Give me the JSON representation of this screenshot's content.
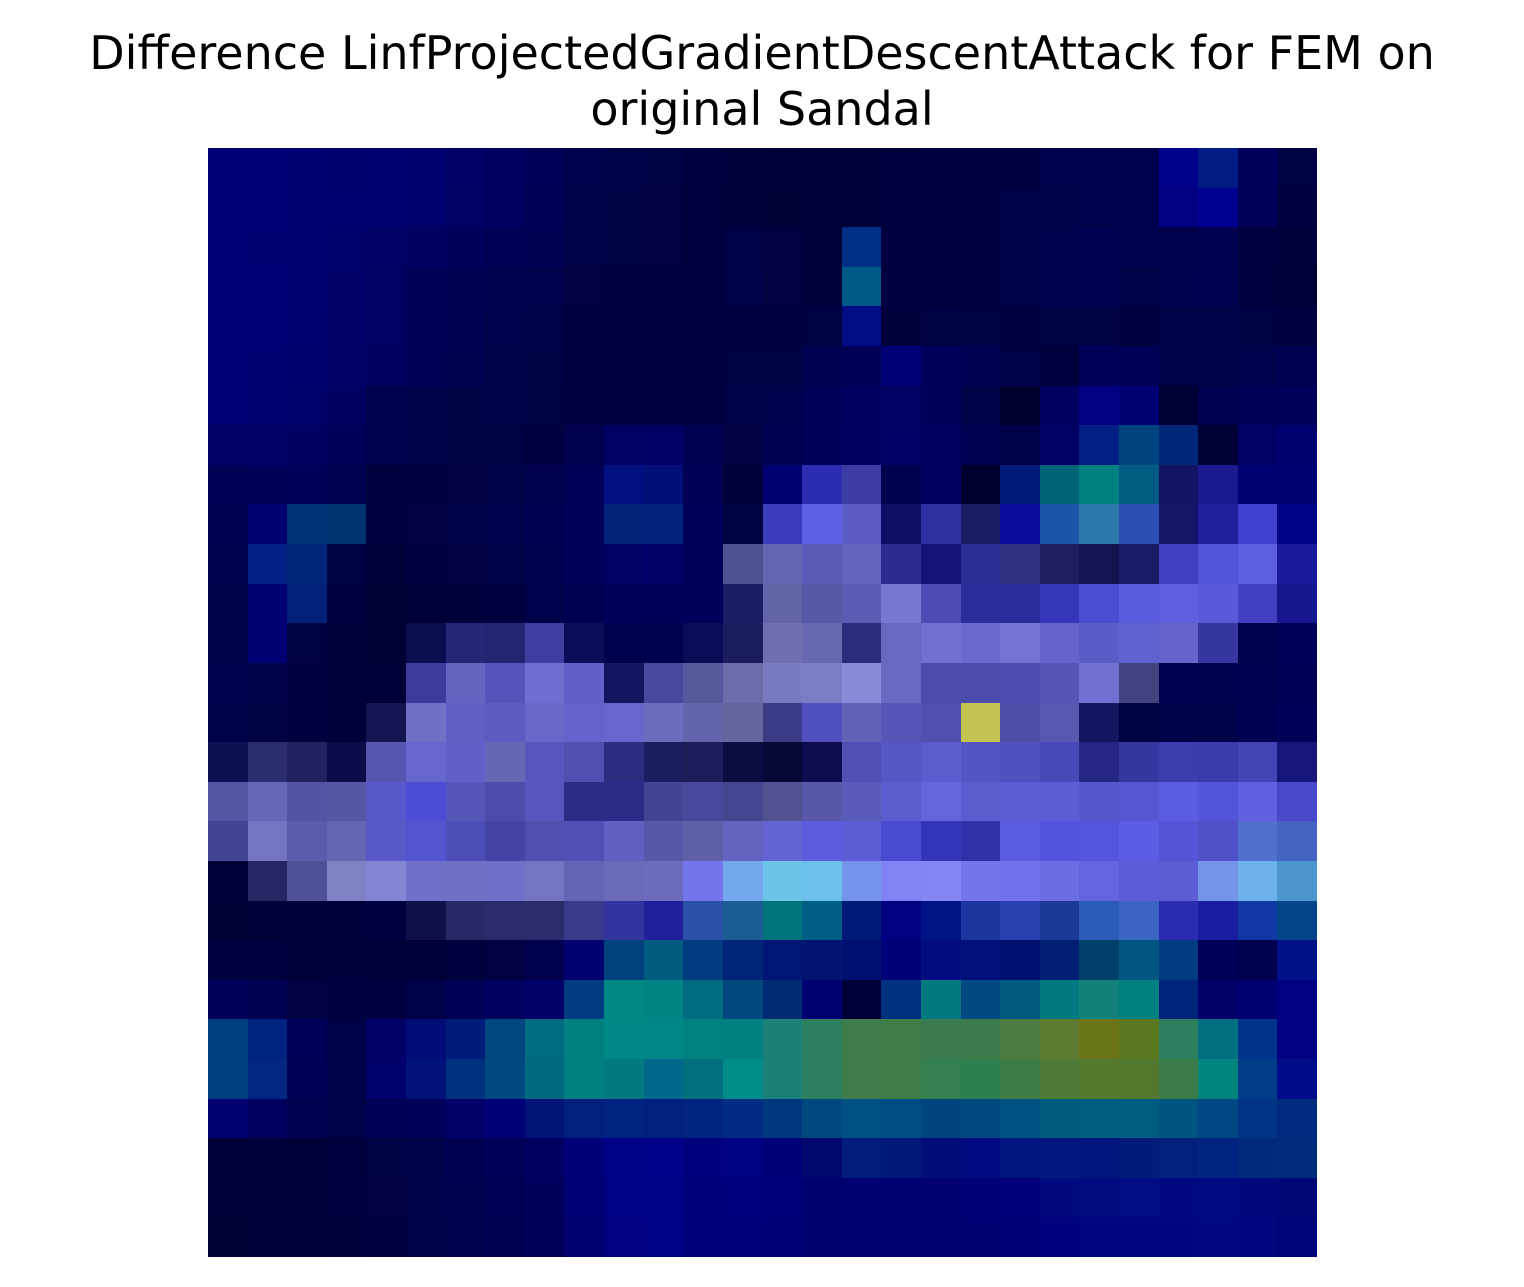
{
  "chart_data": {
    "type": "heatmap",
    "title_lines": [
      "Difference LinfProjectedGradientDescentAttack for FEM on",
      "original Sandal"
    ],
    "rows": 28,
    "cols": 28,
    "axes_visible": false,
    "colormap": "gist_stern",
    "cells": [
      [
        "#000076",
        "#000076",
        "#000074",
        "#00006e",
        "#000070",
        "#00006e",
        "#000066",
        "#000060",
        "#000058",
        "#00004a",
        "#000046",
        "#000044",
        "#00003e",
        "#00003a",
        "#000038",
        "#00003a",
        "#00003a",
        "#00003c",
        "#000040",
        "#00003e",
        "#000040",
        "#00004a",
        "#00004a",
        "#00004e",
        "#00008a",
        "#001a86",
        "#00005c",
        "#000044"
      ],
      [
        "#000078",
        "#000076",
        "#000074",
        "#000070",
        "#000070",
        "#00006e",
        "#000064",
        "#00005e",
        "#000056",
        "#000048",
        "#000044",
        "#000042",
        "#00003c",
        "#000038",
        "#000036",
        "#000038",
        "#000038",
        "#00003c",
        "#00003e",
        "#000040",
        "#000046",
        "#000048",
        "#00004a",
        "#00004e",
        "#000080",
        "#000090",
        "#000058",
        "#000040"
      ],
      [
        "#000076",
        "#000074",
        "#000070",
        "#00006c",
        "#000066",
        "#000060",
        "#00005c",
        "#000056",
        "#000052",
        "#000046",
        "#000044",
        "#000042",
        "#00003c",
        "#000046",
        "#000042",
        "#00003a",
        "#003086",
        "#000040",
        "#000040",
        "#00003e",
        "#000048",
        "#00004a",
        "#000050",
        "#00004e",
        "#00004a",
        "#000050",
        "#00003e",
        "#00003a"
      ],
      [
        "#000078",
        "#000076",
        "#000072",
        "#00006a",
        "#000062",
        "#000056",
        "#000052",
        "#00004e",
        "#00004a",
        "#000042",
        "#000040",
        "#000040",
        "#00003e",
        "#000048",
        "#000042",
        "#00003a",
        "#005a88",
        "#000040",
        "#00003c",
        "#000040",
        "#000048",
        "#00004c",
        "#000050",
        "#000046",
        "#00004e",
        "#000050",
        "#00003c",
        "#000038"
      ],
      [
        "#000076",
        "#000076",
        "#000070",
        "#00006a",
        "#000062",
        "#000056",
        "#000050",
        "#00004a",
        "#000048",
        "#00003e",
        "#00003c",
        "#00003e",
        "#000040",
        "#000040",
        "#000040",
        "#000044",
        "#000c84",
        "#00003a",
        "#000044",
        "#000044",
        "#000040",
        "#000044",
        "#000044",
        "#00003e",
        "#000046",
        "#000046",
        "#000044",
        "#000040"
      ],
      [
        "#000076",
        "#000074",
        "#00006e",
        "#000066",
        "#000060",
        "#000054",
        "#00004e",
        "#000048",
        "#000044",
        "#00003c",
        "#00003e",
        "#00003e",
        "#000040",
        "#000044",
        "#000044",
        "#000050",
        "#000054",
        "#000076",
        "#00005c",
        "#000052",
        "#000046",
        "#00003c",
        "#000058",
        "#000056",
        "#000048",
        "#000048",
        "#00004a",
        "#000052"
      ],
      [
        "#000076",
        "#000070",
        "#00006c",
        "#000060",
        "#00004e",
        "#000048",
        "#000044",
        "#000046",
        "#000044",
        "#000040",
        "#000040",
        "#00003e",
        "#00003e",
        "#000046",
        "#00004a",
        "#000058",
        "#000060",
        "#000062",
        "#00005a",
        "#000046",
        "#00002e",
        "#000060",
        "#000080",
        "#000074",
        "#000036",
        "#000050",
        "#000056",
        "#00005a"
      ],
      [
        "#000068",
        "#000066",
        "#000060",
        "#000058",
        "#00004c",
        "#000046",
        "#000044",
        "#000044",
        "#00003e",
        "#00004c",
        "#000064",
        "#000066",
        "#000052",
        "#000042",
        "#000050",
        "#000058",
        "#00005e",
        "#000066",
        "#000060",
        "#000052",
        "#000048",
        "#000064",
        "#001e84",
        "#004480",
        "#002678",
        "#000036",
        "#000064",
        "#00006e"
      ],
      [
        "#000054",
        "#000056",
        "#000058",
        "#000052",
        "#00003c",
        "#00003e",
        "#000042",
        "#000046",
        "#00004c",
        "#000058",
        "#001080",
        "#001078",
        "#000054",
        "#00003a",
        "#000072",
        "#2c2cb0",
        "#3c3ca4",
        "#00004e",
        "#000060",
        "#000030",
        "#001a7a",
        "#006478",
        "#008080",
        "#005c80",
        "#141464",
        "#1a1a90",
        "#000074",
        "#000074"
      ],
      [
        "#000050",
        "#000070",
        "#003278",
        "#003470",
        "#000040",
        "#000042",
        "#000046",
        "#00004a",
        "#000050",
        "#00005a",
        "#002276",
        "#00227a",
        "#00005a",
        "#000044",
        "#3c3cbc",
        "#6060e6",
        "#5c5cc4",
        "#0e0e64",
        "#3030a4",
        "#1c1c64",
        "#0c0c9c",
        "#1c54a8",
        "#2c78a8",
        "#2c4eb4",
        "#161668",
        "#20209c",
        "#4040d0",
        "#000084"
      ],
      [
        "#00004e",
        "#001e84",
        "#002478",
        "#000044",
        "#000038",
        "#000040",
        "#000042",
        "#000046",
        "#00004e",
        "#000058",
        "#000062",
        "#00006a",
        "#00005a",
        "#505094",
        "#6464b0",
        "#5c5cb8",
        "#6464c0",
        "#2c2c90",
        "#141476",
        "#2c2c96",
        "#323284",
        "#1e1e60",
        "#141450",
        "#1a1a66",
        "#4040c0",
        "#5454d8",
        "#5e5ee0",
        "#1a1a98"
      ],
      [
        "#000048",
        "#000074",
        "#00207a",
        "#000040",
        "#000034",
        "#000038",
        "#00003a",
        "#00003e",
        "#00004a",
        "#000052",
        "#00005a",
        "#000058",
        "#00005c",
        "#1c1c64",
        "#6464a8",
        "#5858a4",
        "#5c5cb4",
        "#7878d0",
        "#4c4cb4",
        "#2c2c9c",
        "#2c2c9c",
        "#3636b8",
        "#4c4cd0",
        "#5a5add",
        "#5e5ede",
        "#5a5ad8",
        "#4040c0",
        "#16168e"
      ],
      [
        "#000048",
        "#000074",
        "#000044",
        "#000038",
        "#000036",
        "#0c0c50",
        "#262676",
        "#242472",
        "#3e3ea0",
        "#0c0c58",
        "#00004c",
        "#00004e",
        "#0c0c56",
        "#1c1c60",
        "#7070b0",
        "#6868b0",
        "#2c2c7c",
        "#6868c0",
        "#7070d0",
        "#6a6acc",
        "#7474d4",
        "#6464cc",
        "#5c5cc8",
        "#6060d0",
        "#6464cc",
        "#3636a0",
        "#00004c",
        "#00005a"
      ],
      [
        "#00004c",
        "#000048",
        "#000040",
        "#00003a",
        "#000038",
        "#3c3c9c",
        "#6464c0",
        "#5454ba",
        "#6e6ed0",
        "#6060c8",
        "#161660",
        "#48489c",
        "#58589c",
        "#6c6caa",
        "#7a7ac0",
        "#7c7cc4",
        "#8a8ad8",
        "#6868c0",
        "#4c4cac",
        "#4c4cac",
        "#4c4cb0",
        "#5656b6",
        "#7070d0",
        "#42427e",
        "#000050",
        "#00004e",
        "#000050",
        "#000056"
      ],
      [
        "#000048",
        "#000044",
        "#00003c",
        "#00003a",
        "#141450",
        "#7070c4",
        "#6060c4",
        "#5c5cc0",
        "#6868c8",
        "#6464cc",
        "#6666cc",
        "#6c6cbc",
        "#6464ac",
        "#64649e",
        "#3c3c86",
        "#5050c0",
        "#6262b6",
        "#5656b8",
        "#5050b0",
        "#c4c452",
        "#4e4ea8",
        "#5858b0",
        "#161660",
        "#000044",
        "#000048",
        "#000048",
        "#000050",
        "#000058"
      ],
      [
        "#0e0e52",
        "#2c2c70",
        "#222260",
        "#0c0c48",
        "#5656b0",
        "#6666cc",
        "#6060c8",
        "#6666b4",
        "#5656bc",
        "#5050b0",
        "#2c2c80",
        "#1c1c60",
        "#1c1c58",
        "#0c0c42",
        "#080838",
        "#0c0c4e",
        "#5050b4",
        "#5656c4",
        "#5c5cd0",
        "#5454c4",
        "#5050c0",
        "#4848b8",
        "#262684",
        "#3636a0",
        "#3c3cb0",
        "#3a3aaa",
        "#4444b8",
        "#16167a"
      ],
      [
        "#5656a4",
        "#6868b8",
        "#5454a4",
        "#5656a4",
        "#5858cc",
        "#4c4cd4",
        "#5656b8",
        "#4c4caa",
        "#5656bc",
        "#2c2c84",
        "#2c2c88",
        "#444494",
        "#48489c",
        "#464690",
        "#525292",
        "#5858a8",
        "#5a5ab8",
        "#5c5cd0",
        "#6464dc",
        "#5c5cd0",
        "#5c5cd4",
        "#5c5cd4",
        "#5656cc",
        "#5656d0",
        "#5c5ce0",
        "#5454d8",
        "#6060e0",
        "#4848c8"
      ],
      [
        "#444494",
        "#7474c0",
        "#5c5cac",
        "#6464b0",
        "#5858c8",
        "#5454d0",
        "#4e4eb8",
        "#4444a4",
        "#5050b0",
        "#5050b4",
        "#6060c0",
        "#5858a8",
        "#6060a8",
        "#6464c0",
        "#6464d4",
        "#5c5cdc",
        "#5c5cd4",
        "#4a4ad0",
        "#3434b8",
        "#3030a8",
        "#5c5ce0",
        "#5252dc",
        "#5454dc",
        "#5c5ce4",
        "#5454d4",
        "#5050c8",
        "#5070d0",
        "#4464c4"
      ],
      [
        "#000038",
        "#262662",
        "#505096",
        "#8080c4",
        "#8484d4",
        "#7070c8",
        "#7070c4",
        "#7070c8",
        "#7474c0",
        "#6464b4",
        "#6a6ab8",
        "#6c6cbc",
        "#7474ec",
        "#74a8ec",
        "#6cc4e8",
        "#6cc0ec",
        "#7494ec",
        "#8282f4",
        "#8484f4",
        "#7474ec",
        "#7070ec",
        "#6c6ce4",
        "#6464e0",
        "#5c5cd8",
        "#5c5cd4",
        "#7494e8",
        "#6cb0ec",
        "#4c94cc"
      ],
      [
        "#000036",
        "#000038",
        "#00003a",
        "#00003a",
        "#000040",
        "#10104a",
        "#282864",
        "#2c2c6c",
        "#2c2c6a",
        "#3a3a8c",
        "#3434a0",
        "#20209c",
        "#2a50a8",
        "#1c5c94",
        "#00747c",
        "#005e84",
        "#001a78",
        "#000080",
        "#001486",
        "#1c34a0",
        "#2840b0",
        "#1a3a98",
        "#2c5cb8",
        "#3c64c4",
        "#2c2cb0",
        "#1c1ca0",
        "#1038a4",
        "#044488"
      ],
      [
        "#00003e",
        "#00003e",
        "#000038",
        "#00003a",
        "#000038",
        "#000038",
        "#00003c",
        "#000042",
        "#00004e",
        "#000070",
        "#00427e",
        "#005c7e",
        "#003c80",
        "#002478",
        "#001676",
        "#001470",
        "#001070",
        "#000078",
        "#000c80",
        "#00107c",
        "#001070",
        "#001e74",
        "#00406c",
        "#005680",
        "#003c84",
        "#000058",
        "#00004e",
        "#001086"
      ],
      [
        "#00005a",
        "#000052",
        "#000042",
        "#00003e",
        "#000040",
        "#000048",
        "#000054",
        "#000060",
        "#00006a",
        "#003c80",
        "#008884",
        "#008484",
        "#006c82",
        "#00487e",
        "#002c74",
        "#000070",
        "#000038",
        "#003080",
        "#007a80",
        "#004882",
        "#005a80",
        "#007a80",
        "#14807a",
        "#008080",
        "#00247a",
        "#00006a",
        "#000072",
        "#000080"
      ],
      [
        "#004080",
        "#002280",
        "#000058",
        "#000048",
        "#000068",
        "#000c78",
        "#001c7a",
        "#004680",
        "#006c80",
        "#008080",
        "#008888",
        "#008888",
        "#008282",
        "#008080",
        "#1c8078",
        "#2c8060",
        "#3e7c4c",
        "#3e7c48",
        "#3a7c50",
        "#3c7c4c",
        "#4e7c40",
        "#5c7a30",
        "#6c7418",
        "#5c7820",
        "#2c8060",
        "#007080",
        "#00348c",
        "#000080"
      ],
      [
        "#004080",
        "#002880",
        "#000056",
        "#000048",
        "#00006c",
        "#001278",
        "#003080",
        "#004880",
        "#006a80",
        "#008080",
        "#007a80",
        "#00688a",
        "#00707c",
        "#008c88",
        "#1a8078",
        "#2c8060",
        "#3e7c4c",
        "#3e7c48",
        "#348052",
        "#2c8050",
        "#3a7c44",
        "#4e7c38",
        "#547a30",
        "#527830",
        "#3a7c48",
        "#008480",
        "#003c88",
        "#000c88"
      ],
      [
        "#000070",
        "#000060",
        "#000050",
        "#000048",
        "#000054",
        "#00005a",
        "#000068",
        "#000078",
        "#001478",
        "#002080",
        "#002280",
        "#002080",
        "#002480",
        "#002c84",
        "#003880",
        "#004880",
        "#005084",
        "#004c84",
        "#004480",
        "#004880",
        "#005080",
        "#005c7c",
        "#005c80",
        "#005c80",
        "#005480",
        "#004884",
        "#003484",
        "#002c80"
      ],
      [
        "#000038",
        "#00003a",
        "#000038",
        "#00003c",
        "#000044",
        "#000048",
        "#000050",
        "#000058",
        "#000060",
        "#000078",
        "#000086",
        "#000088",
        "#00007e",
        "#000082",
        "#000078",
        "#00086e",
        "#001c7c",
        "#001878",
        "#000c78",
        "#000a80",
        "#001480",
        "#001880",
        "#00167e",
        "#001c78",
        "#00207e",
        "#002480",
        "#002a7c",
        "#002c7c"
      ],
      [
        "#000038",
        "#00003a",
        "#00003a",
        "#00003c",
        "#000042",
        "#000048",
        "#00004e",
        "#000054",
        "#00005c",
        "#000076",
        "#000084",
        "#000086",
        "#00007c",
        "#00007e",
        "#00007a",
        "#00006e",
        "#000072",
        "#000074",
        "#000074",
        "#000078",
        "#00007a",
        "#00087e",
        "#000c80",
        "#000c82",
        "#000880",
        "#000a80",
        "#00087c",
        "#000878"
      ],
      [
        "#000036",
        "#000038",
        "#000038",
        "#00003a",
        "#000040",
        "#000046",
        "#00004c",
        "#000052",
        "#000058",
        "#000070",
        "#000080",
        "#000084",
        "#00007a",
        "#00007a",
        "#000078",
        "#00006e",
        "#000070",
        "#000072",
        "#000070",
        "#000074",
        "#000076",
        "#00007e",
        "#000680",
        "#00067e",
        "#000680",
        "#000880",
        "#00067e",
        "#000478"
      ]
    ]
  }
}
